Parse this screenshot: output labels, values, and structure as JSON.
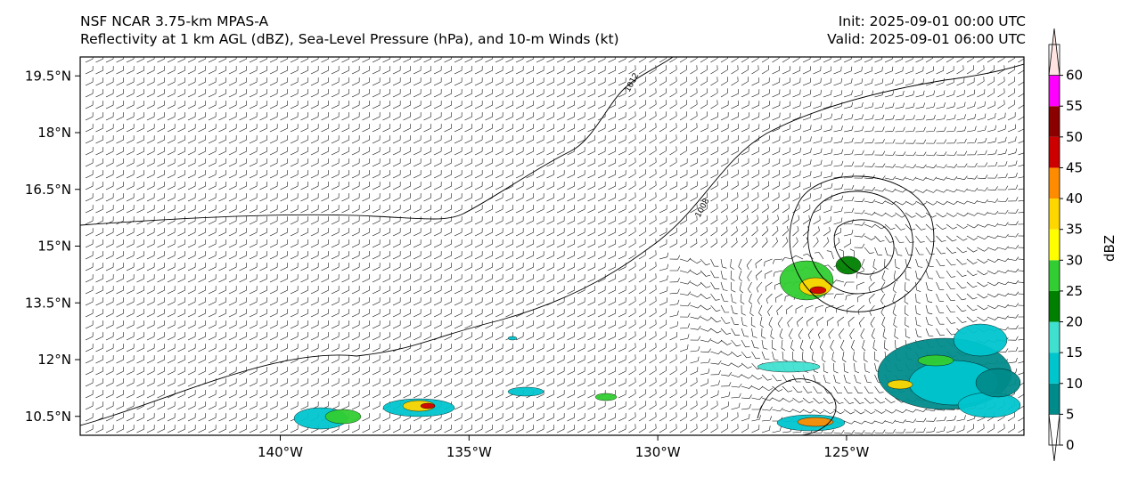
{
  "header": {
    "model": "NSF NCAR 3.75-km MPAS-A",
    "fields": "Reflectivity at 1 km AGL (dBZ), Sea-Level Pressure (hPa), and 10-m Winds (kt)",
    "init": "Init: 2025-09-01 00:00 UTC",
    "valid": "Valid: 2025-09-01 06:00 UTC"
  },
  "map": {
    "lat_ticks": [
      "19.5°N",
      "18°N",
      "16.5°N",
      "15°N",
      "13.5°N",
      "12°N",
      "10.5°N"
    ],
    "lon_ticks": [
      "140°W",
      "135°W",
      "130°W",
      "125°W"
    ],
    "lat_values": [
      19.5,
      18,
      16.5,
      15,
      13.5,
      12,
      10.5
    ],
    "lon_values": [
      -140,
      -135,
      -130,
      -125
    ],
    "extent": {
      "lon_min": -145.3,
      "lon_max": -120.3,
      "lat_min": 10.0,
      "lat_max": 20.0
    },
    "isobar_labels": [
      "1012",
      "1008"
    ]
  },
  "colorbar": {
    "label": "dBZ",
    "ticks": [
      "0",
      "5",
      "10",
      "15",
      "20",
      "25",
      "30",
      "35",
      "40",
      "45",
      "50",
      "55",
      "60"
    ],
    "colors": [
      "#ffffff",
      "#008b8b",
      "#00c5cd",
      "#40e0d0",
      "#008000",
      "#32cd32",
      "#ffff00",
      "#ffd700",
      "#ff8c00",
      "#cd0000",
      "#8b0000",
      "#ff00ff",
      "#ffe4e1"
    ]
  }
}
